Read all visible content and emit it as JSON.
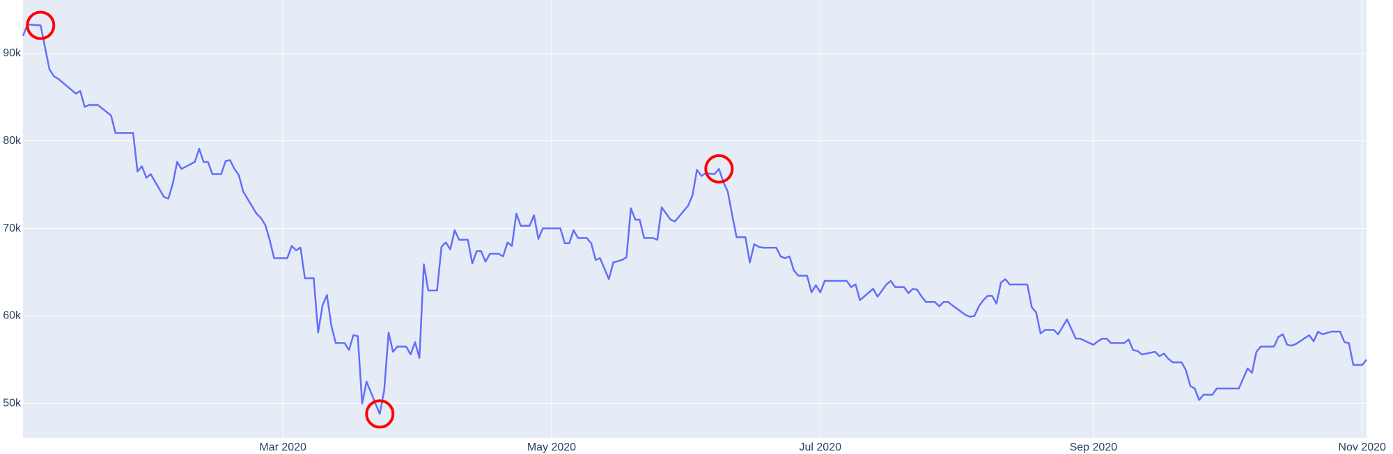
{
  "chart_data": {
    "type": "line",
    "x": [
      "2020-01-02",
      "2020-01-03",
      "2020-01-06",
      "2020-01-08",
      "2020-01-09",
      "2020-01-10",
      "2020-01-14",
      "2020-01-15",
      "2020-01-16",
      "2020-01-17",
      "2020-01-19",
      "2020-01-22",
      "2020-01-23",
      "2020-01-27",
      "2020-01-28",
      "2020-01-29",
      "2020-01-30",
      "2020-01-31",
      "2020-02-03",
      "2020-02-04",
      "2020-02-05",
      "2020-02-06",
      "2020-02-07",
      "2020-02-10",
      "2020-02-11",
      "2020-02-12",
      "2020-02-13",
      "2020-02-14",
      "2020-02-16",
      "2020-02-17",
      "2020-02-18",
      "2020-02-19",
      "2020-02-20",
      "2020-02-21",
      "2020-02-24",
      "2020-02-25",
      "2020-02-26",
      "2020-02-27",
      "2020-02-28",
      "2020-03-02",
      "2020-03-03",
      "2020-03-04",
      "2020-03-05",
      "2020-03-06",
      "2020-03-08",
      "2020-03-09",
      "2020-03-10",
      "2020-03-11",
      "2020-03-12",
      "2020-03-13",
      "2020-03-15",
      "2020-03-16",
      "2020-03-17",
      "2020-03-18",
      "2020-03-19",
      "2020-03-20",
      "2020-03-22",
      "2020-03-23",
      "2020-03-24",
      "2020-03-25",
      "2020-03-26",
      "2020-03-27",
      "2020-03-29",
      "2020-03-30",
      "2020-03-31",
      "2020-04-01",
      "2020-04-02",
      "2020-04-03",
      "2020-04-05",
      "2020-04-06",
      "2020-04-07",
      "2020-04-08",
      "2020-04-09",
      "2020-04-10",
      "2020-04-12",
      "2020-04-13",
      "2020-04-14",
      "2020-04-15",
      "2020-04-16",
      "2020-04-17",
      "2020-04-19",
      "2020-04-20",
      "2020-04-21",
      "2020-04-22",
      "2020-04-23",
      "2020-04-24",
      "2020-04-26",
      "2020-04-27",
      "2020-04-28",
      "2020-04-29",
      "2020-05-03",
      "2020-05-04",
      "2020-05-05",
      "2020-05-06",
      "2020-05-07",
      "2020-05-09",
      "2020-05-10",
      "2020-05-11",
      "2020-05-12",
      "2020-05-14",
      "2020-05-15",
      "2020-05-17",
      "2020-05-18",
      "2020-05-19",
      "2020-05-20",
      "2020-05-21",
      "2020-05-22",
      "2020-05-24",
      "2020-05-25",
      "2020-05-26",
      "2020-05-28",
      "2020-05-29",
      "2020-06-01",
      "2020-06-02",
      "2020-06-03",
      "2020-06-04",
      "2020-06-05",
      "2020-06-07",
      "2020-06-08",
      "2020-06-09",
      "2020-06-10",
      "2020-06-11",
      "2020-06-12",
      "2020-06-14",
      "2020-06-15",
      "2020-06-16",
      "2020-06-17",
      "2020-06-18",
      "2020-06-21",
      "2020-06-22",
      "2020-06-23",
      "2020-06-24",
      "2020-06-25",
      "2020-06-26",
      "2020-06-28",
      "2020-06-29",
      "2020-06-30",
      "2020-07-01",
      "2020-07-02",
      "2020-07-07",
      "2020-07-08",
      "2020-07-09",
      "2020-07-10",
      "2020-07-13",
      "2020-07-14",
      "2020-07-16",
      "2020-07-17",
      "2020-07-18",
      "2020-07-20",
      "2020-07-21",
      "2020-07-22",
      "2020-07-23",
      "2020-07-24",
      "2020-07-25",
      "2020-07-27",
      "2020-07-28",
      "2020-07-29",
      "2020-07-30",
      "2020-07-31",
      "2020-08-03",
      "2020-08-04",
      "2020-08-05",
      "2020-08-06",
      "2020-08-07",
      "2020-08-08",
      "2020-08-09",
      "2020-08-10",
      "2020-08-11",
      "2020-08-12",
      "2020-08-13",
      "2020-08-17",
      "2020-08-18",
      "2020-08-19",
      "2020-08-20",
      "2020-08-21",
      "2020-08-23",
      "2020-08-24",
      "2020-08-26",
      "2020-08-28",
      "2020-08-29",
      "2020-09-01",
      "2020-09-02",
      "2020-09-03",
      "2020-09-04",
      "2020-09-05",
      "2020-09-08",
      "2020-09-09",
      "2020-09-10",
      "2020-09-11",
      "2020-09-12",
      "2020-09-15",
      "2020-09-16",
      "2020-09-17",
      "2020-09-18",
      "2020-09-19",
      "2020-09-21",
      "2020-09-22",
      "2020-09-23",
      "2020-09-24",
      "2020-09-25",
      "2020-09-26",
      "2020-09-28",
      "2020-09-29",
      "2020-10-04",
      "2020-10-06",
      "2020-10-07",
      "2020-10-08",
      "2020-10-09",
      "2020-10-12",
      "2020-10-13",
      "2020-10-14",
      "2020-10-15",
      "2020-10-16",
      "2020-10-17",
      "2020-10-20",
      "2020-10-21",
      "2020-10-22",
      "2020-10-23",
      "2020-10-25",
      "2020-10-27",
      "2020-10-28",
      "2020-10-29",
      "2020-10-30",
      "2020-11-01",
      "2020-11-02"
    ],
    "series": [
      {
        "color": "#636efa",
        "values": [
          92000,
          93300,
          93200,
          88200,
          87400,
          87100,
          85400,
          85700,
          83900,
          84100,
          84100,
          82900,
          80900,
          80900,
          76500,
          77100,
          75800,
          76200,
          73600,
          73400,
          75100,
          77600,
          76800,
          77600,
          79100,
          77600,
          77600,
          76200,
          76200,
          77700,
          77800,
          76800,
          76100,
          74200,
          71700,
          71200,
          70400,
          68700,
          66600,
          66600,
          68000,
          67500,
          67800,
          64300,
          64300,
          58100,
          61200,
          62400,
          58900,
          56900,
          56900,
          56100,
          57800,
          57700,
          50000,
          52500,
          50000,
          48800,
          51500,
          58100,
          55900,
          56500,
          56500,
          55600,
          57000,
          55200,
          65900,
          62900,
          62900,
          67900,
          68400,
          67600,
          69800,
          68700,
          68700,
          66000,
          67400,
          67400,
          66200,
          67100,
          67100,
          66800,
          68400,
          68000,
          71700,
          70300,
          70300,
          71500,
          68800,
          70000,
          70000,
          68300,
          68300,
          69800,
          68900,
          68900,
          68300,
          66400,
          66600,
          64200,
          66100,
          66400,
          66700,
          72300,
          71000,
          71000,
          68900,
          68900,
          68700,
          72400,
          71000,
          70800,
          72600,
          73800,
          76700,
          76000,
          76300,
          76200,
          76800,
          75300,
          74200,
          71500,
          69000,
          69000,
          66100,
          68200,
          67900,
          67800,
          67800,
          66800,
          66600,
          66800,
          65200,
          64600,
          64600,
          62700,
          63500,
          62700,
          64000,
          64000,
          63300,
          63600,
          61800,
          63100,
          62200,
          63600,
          64000,
          63300,
          63300,
          62600,
          63100,
          63000,
          62200,
          61600,
          61600,
          61100,
          61600,
          61600,
          61200,
          60100,
          59900,
          60000,
          61100,
          61800,
          62300,
          62300,
          61400,
          63800,
          64200,
          63600,
          63600,
          61000,
          60400,
          58000,
          58400,
          58400,
          57900,
          59600,
          57400,
          57400,
          56700,
          57100,
          57400,
          57400,
          56900,
          56900,
          57300,
          56100,
          56000,
          55600,
          55900,
          55400,
          55700,
          55100,
          54700,
          54700,
          53800,
          52000,
          51700,
          50400,
          51000,
          51000,
          51700,
          51700,
          54000,
          53500,
          55900,
          56500,
          56500,
          57600,
          57900,
          56700,
          56600,
          56800,
          57800,
          57100,
          58200,
          57900,
          58200,
          58200,
          57000,
          56900,
          54400,
          54400,
          55000
        ]
      }
    ],
    "highlights": {
      "color": "#ff0000",
      "x": [
        "2020-01-06",
        "2020-03-23",
        "2020-06-08"
      ],
      "values": [
        93200,
        48800,
        76800
      ]
    },
    "xlim": [
      "2020-01-02",
      "2020-11-02"
    ],
    "xticks": [
      {
        "value": "2020-03-01",
        "label": "Mar 2020"
      },
      {
        "value": "2020-05-01",
        "label": "May 2020"
      },
      {
        "value": "2020-07-01",
        "label": "Jul 2020"
      },
      {
        "value": "2020-09-01",
        "label": "Sep 2020"
      },
      {
        "value": "2020-11-01",
        "label": "Nov 2020"
      }
    ],
    "ylim": [
      46050,
      96100
    ],
    "yticks": [
      {
        "value": 50000,
        "label": "50k"
      },
      {
        "value": 60000,
        "label": "60k"
      },
      {
        "value": 70000,
        "label": "70k"
      },
      {
        "value": 80000,
        "label": "80k"
      },
      {
        "value": 90000,
        "label": "90k"
      }
    ],
    "grid": true
  }
}
